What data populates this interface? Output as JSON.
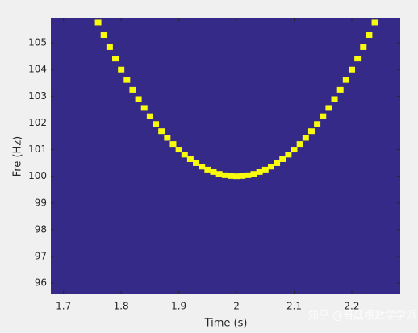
{
  "chart_data": {
    "type": "ridge",
    "xlabel": "Time (s)",
    "ylabel": "Fre (Hz)",
    "background_color": "#352a87",
    "x": [
      1.76,
      1.77,
      1.78,
      1.79,
      1.8,
      1.81,
      1.82,
      1.83,
      1.84,
      1.85,
      1.86,
      1.87,
      1.88,
      1.89,
      1.9,
      1.91,
      1.92,
      1.93,
      1.94,
      1.95,
      1.96,
      1.97,
      1.98,
      1.99,
      2,
      2.01,
      2.02,
      2.03,
      2.04,
      2.05,
      2.06,
      2.07,
      2.08,
      2.09,
      2.1,
      2.11,
      2.12,
      2.13,
      2.14,
      2.15,
      2.16,
      2.17,
      2.18,
      2.19,
      2.2,
      2.21,
      2.22,
      2.23,
      2.24
    ],
    "series": [
      {
        "color": "#f9fb0e",
        "values": [
          105.76,
          105.29,
          104.84,
          104.41,
          104,
          103.61,
          103.24,
          102.89,
          102.56,
          102.25,
          101.96,
          101.69,
          101.44,
          101.21,
          101,
          100.81,
          100.64,
          100.49,
          100.36,
          100.25,
          100.16,
          100.09,
          100.04,
          100.01,
          100,
          100.01,
          100.04,
          100.09,
          100.16,
          100.25,
          100.36,
          100.49,
          100.64,
          100.81,
          101,
          101.21,
          101.44,
          101.69,
          101.96,
          102.25,
          102.56,
          102.89,
          103.24,
          103.61,
          104,
          104.41,
          104.84,
          105.29,
          105.76
        ]
      }
    ],
    "xlim": [
      1.678,
      2.284
    ],
    "ylim": [
      95.58,
      105.94
    ],
    "xticks": [
      1.7,
      1.8,
      1.9,
      2,
      2.1,
      2.2
    ],
    "yticks": [
      96,
      97,
      98,
      99,
      100,
      101,
      102,
      103,
      104,
      105
    ]
  },
  "watermark": "知乎 @哥廷根数学学派"
}
